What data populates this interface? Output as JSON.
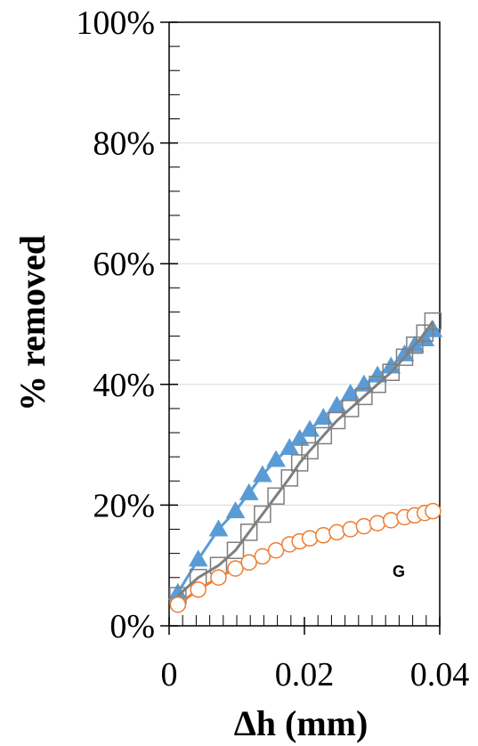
{
  "chart_data": {
    "type": "line",
    "title": "",
    "xlabel": "Δh (mm)",
    "ylabel": "% removed",
    "xlim": [
      0,
      0.04
    ],
    "ylim": [
      0,
      1
    ],
    "x_ticks": [
      {
        "value": 0,
        "label": "0"
      },
      {
        "value": 0.02,
        "label": "0.02"
      },
      {
        "value": 0.04,
        "label": "0.04"
      }
    ],
    "y_ticks": [
      {
        "value": 0,
        "label": "0%"
      },
      {
        "value": 0.2,
        "label": "20%"
      },
      {
        "value": 0.4,
        "label": "40%"
      },
      {
        "value": 0.6,
        "label": "60%"
      },
      {
        "value": 0.8,
        "label": "80%"
      },
      {
        "value": 1.0,
        "label": "100%"
      }
    ],
    "gridlines": "horizontal",
    "legend": "none",
    "annotation": "G",
    "series": [
      {
        "marker": "triangle",
        "color": "#5b9bd5",
        "x": [
          0.0013,
          0.0043,
          0.0073,
          0.0098,
          0.0118,
          0.0138,
          0.0158,
          0.0178,
          0.0193,
          0.0208,
          0.0228,
          0.0248,
          0.0268,
          0.0288,
          0.0308,
          0.0328,
          0.0348,
          0.0363,
          0.0378,
          0.039
        ],
        "y": [
          0.055,
          0.11,
          0.16,
          0.19,
          0.22,
          0.25,
          0.275,
          0.295,
          0.31,
          0.325,
          0.345,
          0.365,
          0.385,
          0.4,
          0.415,
          0.43,
          0.45,
          0.465,
          0.475,
          0.49
        ]
      },
      {
        "marker": "square",
        "color": "#7f7f7f",
        "x": [
          0.0013,
          0.0043,
          0.0073,
          0.0098,
          0.0118,
          0.0138,
          0.0158,
          0.0178,
          0.0193,
          0.0208,
          0.0228,
          0.0248,
          0.0268,
          0.0288,
          0.0308,
          0.0328,
          0.0348,
          0.0363,
          0.0378,
          0.039
        ],
        "y": [
          0.05,
          0.08,
          0.1,
          0.125,
          0.155,
          0.185,
          0.215,
          0.245,
          0.27,
          0.29,
          0.315,
          0.34,
          0.36,
          0.38,
          0.4,
          0.42,
          0.445,
          0.465,
          0.485,
          0.505
        ]
      },
      {
        "marker": "circle",
        "color": "#ed7d31",
        "x": [
          0.0013,
          0.0043,
          0.0073,
          0.0098,
          0.0118,
          0.0138,
          0.0158,
          0.0178,
          0.0193,
          0.0208,
          0.0228,
          0.0248,
          0.0268,
          0.0288,
          0.0308,
          0.0328,
          0.0348,
          0.0363,
          0.0378,
          0.039
        ],
        "y": [
          0.035,
          0.06,
          0.08,
          0.095,
          0.105,
          0.115,
          0.125,
          0.135,
          0.14,
          0.145,
          0.15,
          0.155,
          0.16,
          0.165,
          0.17,
          0.175,
          0.18,
          0.183,
          0.187,
          0.19
        ]
      }
    ]
  }
}
